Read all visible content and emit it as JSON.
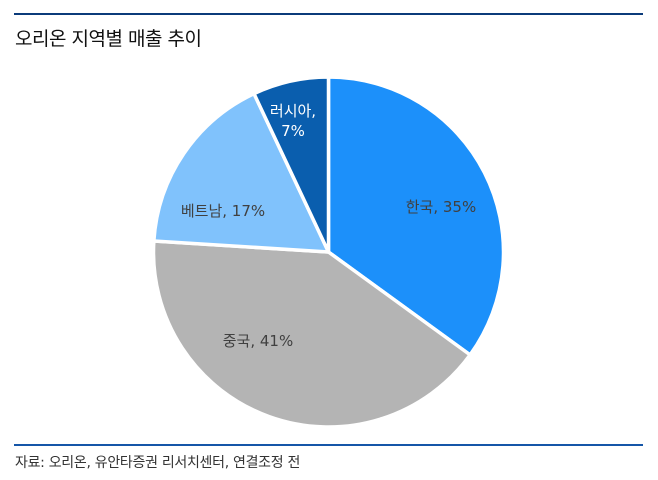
{
  "header": {
    "title": "오리온 지역별 매출 추이"
  },
  "footer": {
    "source": "자료: 오리온, 유안타증권 리서치센터, 연결조정 전"
  },
  "chart_data": {
    "type": "pie",
    "title": "오리온 지역별 매출 추이",
    "categories": [
      "한국",
      "중국",
      "베트남",
      "러시아"
    ],
    "values": [
      35,
      41,
      17,
      7
    ],
    "unit": "%",
    "start_angle_deg": 0,
    "direction": "clockwise",
    "colors": [
      "#1C90FA",
      "#B4B4B4",
      "#80C2FC",
      "#0A5EAE"
    ],
    "labels": [
      "한국, 35%",
      "중국, 41%",
      "베트남, 17%",
      "러시아, 7%"
    ],
    "label_colors": [
      "#404040",
      "#404040",
      "#404040",
      "#ffffff"
    ],
    "legend": "none",
    "source": "자료: 오리온, 유안타증권 리서치센터, 연결조정 전"
  },
  "labels": {
    "korea": "한국, 35%",
    "china": "중국, 41%",
    "vietnam": "베트남, 17%",
    "russia_line1": "러시아,",
    "russia_line2": "7%"
  }
}
